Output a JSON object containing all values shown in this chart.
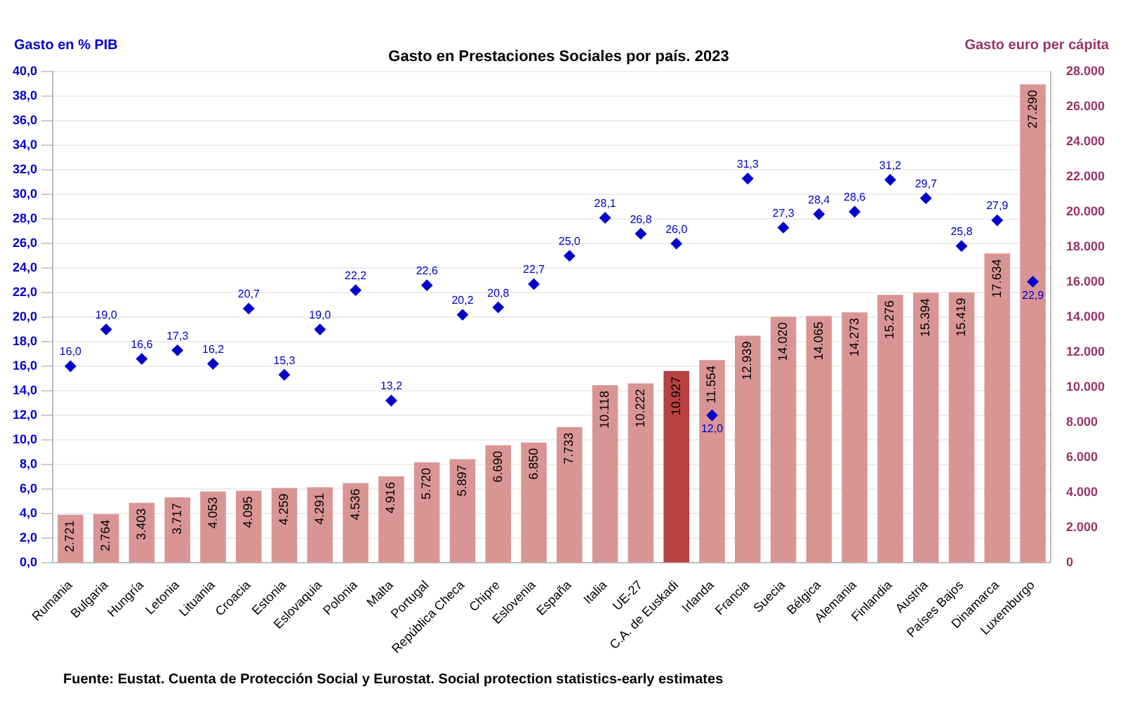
{
  "chart_data": {
    "type": "bar",
    "title": "Gasto en Prestaciones Sociales por país. 2023",
    "ylabel": "Gasto en % PIB",
    "y2label": "Gasto euro per cápita",
    "categories": [
      "Rumania",
      "Bulgaria",
      "Hungría",
      "Letonia",
      "Lituania",
      "Croacia",
      "Estonia",
      "Eslovaquia",
      "Polonia",
      "Malta",
      "Portugal",
      "República Checa",
      "Chipre",
      "Eslovenia",
      "España",
      "Italia",
      "UE-27",
      "C.A. de Euskadi",
      "Irlanda",
      "Francia",
      "Suecia",
      "Bélgica",
      "Alemania",
      "Finlandia",
      "Austria",
      "Países Bajos",
      "Dinamarca",
      "Luxemburgo"
    ],
    "series": [
      {
        "axis": "y2",
        "colors": [
          "#d99594",
          "#d99594",
          "#d99594",
          "#d99594",
          "#d99594",
          "#d99594",
          "#d99594",
          "#d99594",
          "#d99594",
          "#d99594",
          "#d99594",
          "#d99594",
          "#d99594",
          "#d99594",
          "#d99594",
          "#d99594",
          "#d99594",
          "#b94141",
          "#d99594",
          "#d99594",
          "#d99594",
          "#d99594",
          "#d99594",
          "#d99594",
          "#d99594",
          "#d99594",
          "#d99594",
          "#d99594"
        ],
        "values": [
          2721,
          2764,
          3403,
          3717,
          4053,
          4095,
          4259,
          4291,
          4536,
          4916,
          5720,
          5897,
          6690,
          6850,
          7733,
          10118,
          10222,
          10927,
          11554,
          12939,
          14020,
          14065,
          14273,
          15276,
          15394,
          15419,
          17634,
          27290
        ],
        "value_labels": [
          "2.721",
          "2.764",
          "3.403",
          "3.717",
          "4.053",
          "4.095",
          "4.259",
          "4.291",
          "4.536",
          "4.916",
          "5.720",
          "5.897",
          "6.690",
          "6.850",
          "7.733",
          "10.118",
          "10.222",
          "10.927",
          "11.554",
          "12.939",
          "14.020",
          "14.065",
          "14.273",
          "15.276",
          "15.394",
          "15.419",
          "17.634",
          "27.290"
        ]
      },
      {
        "type": "scatter",
        "axis": "y",
        "color": "#0000cc",
        "marker": "diamond",
        "x": [
          "Rumania",
          "Bulgaria",
          "Hungría",
          "Letonia",
          "Lituania",
          "Croacia",
          "Estonia",
          "Eslovaquia",
          "Polonia",
          "Malta",
          "Portugal",
          "República Checa",
          "Chipre",
          "Eslovenia",
          "España",
          "Italia",
          "UE-27",
          "C.A. de Euskadi",
          "Irlanda",
          "Francia",
          "Suecia",
          "Bélgica",
          "Alemania",
          "Finlandia",
          "Austria",
          "Países Bajos",
          "Dinamarca",
          "Luxemburgo"
        ],
        "values": [
          16.0,
          19.0,
          16.6,
          17.3,
          16.2,
          20.7,
          15.3,
          19.0,
          22.2,
          13.2,
          22.6,
          20.2,
          20.8,
          22.7,
          25.0,
          28.1,
          26.8,
          26.0,
          12.0,
          31.3,
          27.3,
          28.4,
          28.6,
          31.2,
          29.7,
          25.8,
          27.9,
          22.9
        ],
        "value_labels": [
          "16,0",
          "19,0",
          "16,6",
          "17,3",
          "16,2",
          "20,7",
          "15,3",
          "19,0",
          "22,2",
          "13,2",
          "22,6",
          "20,2",
          "20,8",
          "22,7",
          "25,0",
          "28,1",
          "26,8",
          "26,0",
          "12,0",
          "31,3",
          "27,3",
          "28,4",
          "28,6",
          "31,2",
          "29,7",
          "25,8",
          "27,9",
          "22,9"
        ]
      }
    ],
    "ylim": [
      0,
      40
    ],
    "yticks": [
      {
        "value": 0,
        "label": "0,0"
      },
      {
        "value": 2,
        "label": "2,0"
      },
      {
        "value": 4,
        "label": "4,0"
      },
      {
        "value": 6,
        "label": "6,0"
      },
      {
        "value": 8,
        "label": "8,0"
      },
      {
        "value": 10,
        "label": "10,0"
      },
      {
        "value": 12,
        "label": "12,0"
      },
      {
        "value": 14,
        "label": "14,0"
      },
      {
        "value": 16,
        "label": "16,0"
      },
      {
        "value": 18,
        "label": "18,0"
      },
      {
        "value": 20,
        "label": "20,0"
      },
      {
        "value": 22,
        "label": "22,0"
      },
      {
        "value": 24,
        "label": "24,0"
      },
      {
        "value": 26,
        "label": "26,0"
      },
      {
        "value": 28,
        "label": "28,0"
      },
      {
        "value": 30,
        "label": "30,0"
      },
      {
        "value": 32,
        "label": "32,0"
      },
      {
        "value": 34,
        "label": "34,0"
      },
      {
        "value": 36,
        "label": "36,0"
      },
      {
        "value": 38,
        "label": "38,0"
      },
      {
        "value": 40,
        "label": "40,0"
      }
    ],
    "y2lim": [
      0,
      28000
    ],
    "y2ticks": [
      0,
      {
        "value": 2000,
        "label": "2.000"
      },
      {
        "value": 4000,
        "label": "4.000"
      },
      {
        "value": 6000,
        "label": "6.000"
      },
      {
        "value": 8000,
        "label": "8.000"
      },
      {
        "value": 10000,
        "label": "10.000"
      },
      {
        "value": 12000,
        "label": "12.000"
      },
      {
        "value": 14000,
        "label": "14.000"
      },
      {
        "value": 16000,
        "label": "16.000"
      },
      {
        "value": 18000,
        "label": "18.000"
      },
      {
        "value": 20000,
        "label": "20.000"
      },
      {
        "value": 22000,
        "label": "22.000"
      },
      {
        "value": 24000,
        "label": "24.000"
      },
      {
        "value": 26000,
        "label": "26.000"
      },
      {
        "value": 28000,
        "label": "28.000"
      }
    ],
    "grid": "y",
    "legend": false,
    "annotations": [
      "Fuente: Eustat. Cuenta de Protección Social y Eurostat. Social protection statistics-early estimates"
    ]
  }
}
